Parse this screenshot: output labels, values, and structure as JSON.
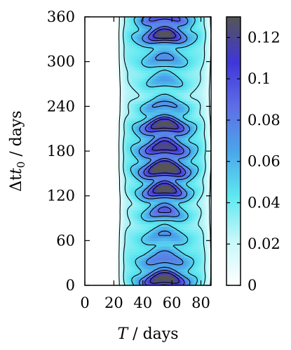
{
  "chart_data": {
    "type": "contour",
    "title": "",
    "xlabel_var": "T",
    "xlabel_unit": " / days",
    "ylabel_var": "Δt",
    "ylabel_sub": "0",
    "ylabel_unit": " / days",
    "xlim": [
      0,
      87
    ],
    "ylim": [
      0,
      360
    ],
    "xticks": [
      0,
      20,
      40,
      60,
      80
    ],
    "yticks": [
      0,
      60,
      120,
      180,
      240,
      300,
      360
    ],
    "colorbar": {
      "range": [
        0,
        0.13
      ],
      "ticks": [
        0,
        0.02,
        0.04,
        0.06,
        0.08,
        0.1,
        0.12
      ],
      "tick_labels": [
        "0",
        "0.02",
        "0.04",
        "0.06",
        "0.08",
        "0.1",
        "0.12"
      ],
      "colors": [
        "#ffffff",
        "#c8f7fa",
        "#5ee8f0",
        "#4aa6ea",
        "#5f6ee6",
        "#3f36d8",
        "#555555"
      ]
    },
    "field": {
      "x_start": 25,
      "x_end": 85,
      "y_period": 29.5,
      "peak_x": 55,
      "peak_width": 17,
      "max_value": 0.12
    },
    "bands": [
      {
        "center": 0,
        "width": 40,
        "strength": 0.95
      },
      {
        "center": 150,
        "width": 70,
        "strength": 1.0
      },
      {
        "center": 210,
        "width": 40,
        "strength": 0.9
      },
      {
        "center": 345,
        "width": 25,
        "strength": 0.95
      }
    ]
  }
}
